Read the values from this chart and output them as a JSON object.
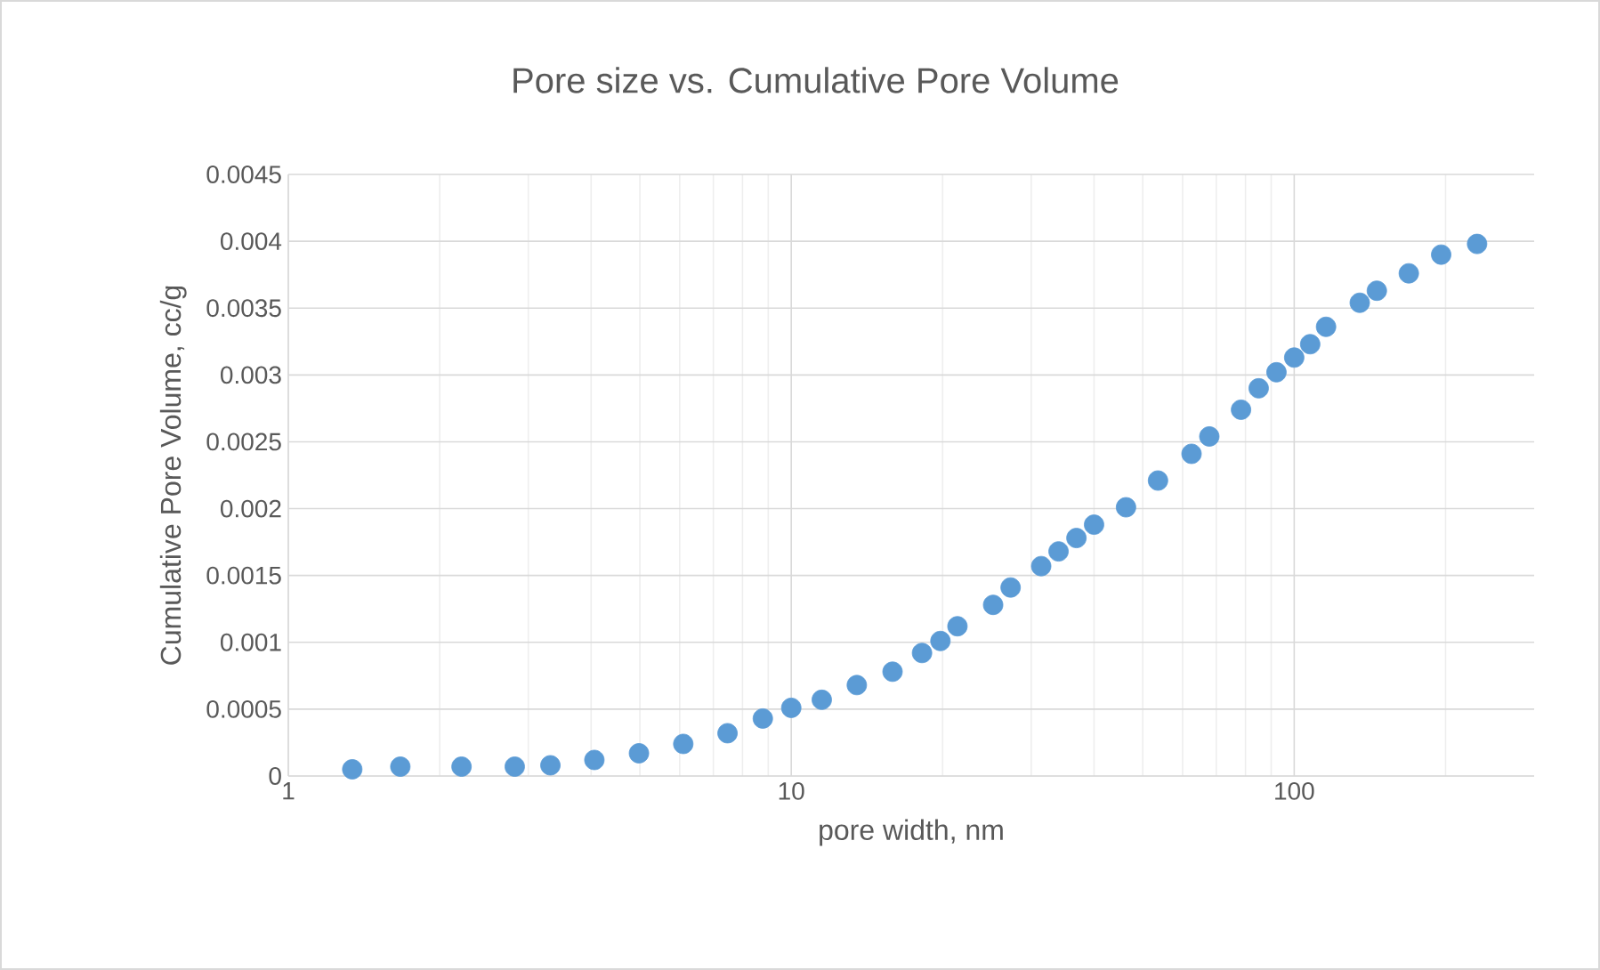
{
  "chart_data": {
    "type": "scatter",
    "title": "Pore size vs. Cumulative Pore Volume",
    "xlabel": "pore width, nm",
    "ylabel": "Cumulative Pore Volume, cc/g",
    "x": [
      1.34,
      1.67,
      2.21,
      2.82,
      3.32,
      4.06,
      4.98,
      6.1,
      7.47,
      8.78,
      10,
      11.5,
      13.5,
      15.9,
      18.2,
      19.8,
      21.4,
      25.2,
      27.3,
      31.4,
      34.0,
      36.9,
      40.0,
      46.3,
      53.6,
      62.5,
      67.8,
      78.4,
      85.0,
      92.2,
      100,
      107.6,
      115.7,
      135,
      146,
      169,
      196,
      231
    ],
    "series": [
      {
        "color": "#5b9bd5",
        "values": [
          5e-05,
          7e-05,
          7e-05,
          7e-05,
          8e-05,
          0.00012,
          0.00017,
          0.00024,
          0.00032,
          0.00043,
          0.00051,
          0.00057,
          0.00068,
          0.00078,
          0.00092,
          0.00101,
          0.00112,
          0.00128,
          0.00141,
          0.00157,
          0.00168,
          0.00178,
          0.00188,
          0.00201,
          0.00221,
          0.00241,
          0.00254,
          0.00274,
          0.0029,
          0.00302,
          0.00313,
          0.00323,
          0.00336,
          0.00354,
          0.00363,
          0.00376,
          0.0039,
          0.00398
        ]
      }
    ],
    "xlim": [
      1,
      300
    ],
    "ylim": [
      0,
      0.0045
    ],
    "xticks": [
      1,
      10,
      100
    ],
    "yticks": [
      0,
      0.0005,
      0.001,
      0.0015,
      0.002,
      0.0025,
      0.003,
      0.0035,
      0.004,
      0.0045
    ],
    "log": "x",
    "grid": true,
    "marker": "circle"
  }
}
